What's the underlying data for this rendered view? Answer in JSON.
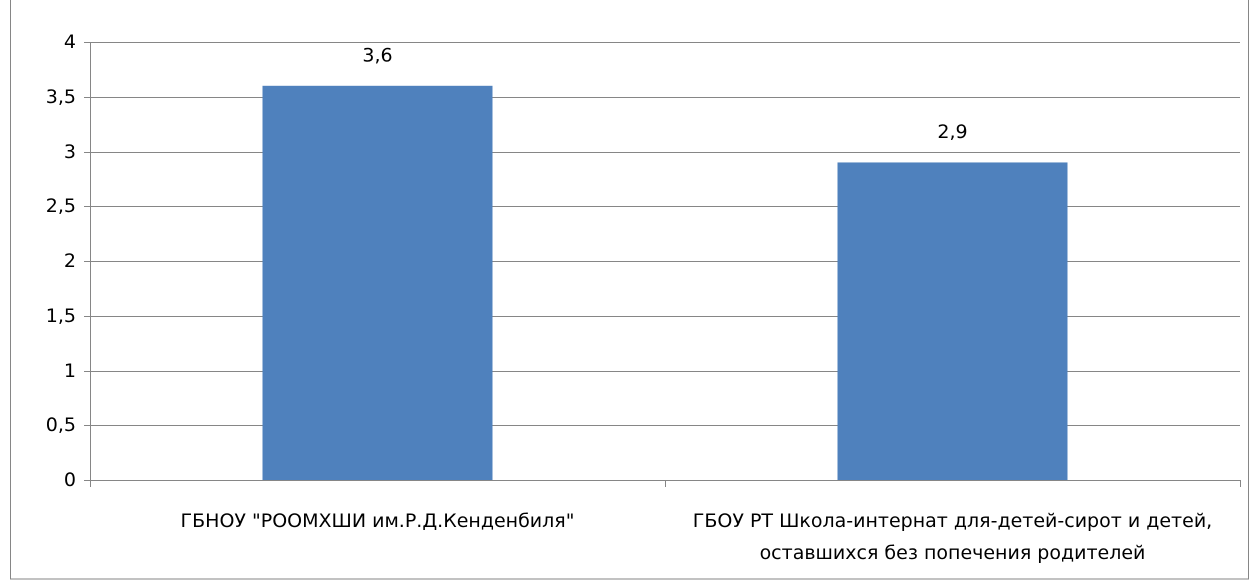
{
  "chart_data": {
    "type": "bar",
    "categories": [
      "ГБНОУ \"РООМХШИ им.Р.Д.Кенденбиля\"",
      "ГБОУ РТ Школа-интернат для-детей-сирот и детей, оставшихся без попечения родителей"
    ],
    "values": [
      3.6,
      2.9
    ],
    "value_labels": [
      "3,6",
      "2,9"
    ],
    "color": "#4f81bd",
    "ylim": [
      0,
      4
    ],
    "yticks": [
      0,
      {
        "value": 0.5,
        "label": "0,5"
      },
      1,
      {
        "value": 1.5,
        "label": "1,5"
      },
      2,
      {
        "value": 2.5,
        "label": "2,5"
      },
      3,
      {
        "value": 3.5,
        "label": "3,5"
      },
      4
    ],
    "grid": true
  }
}
